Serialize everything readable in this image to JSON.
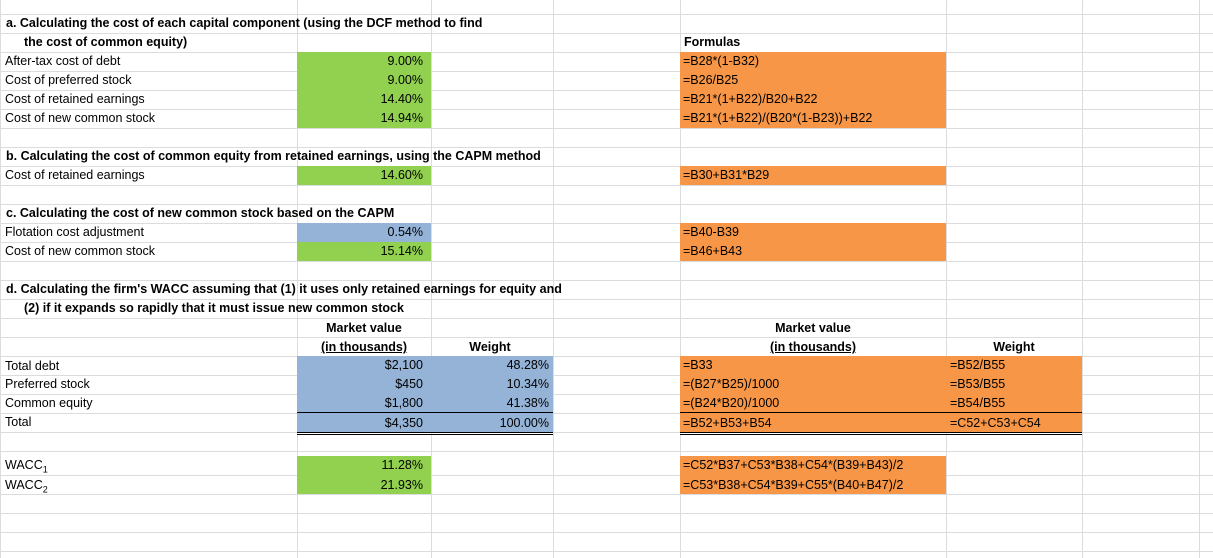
{
  "colors": {
    "green": "#92d050",
    "blue": "#95b3d7",
    "orange": "#f79646",
    "grid": "#dadcdf"
  },
  "sectionA": {
    "title1": "a. Calculating the cost of each capital component (using the DCF method to find",
    "title2": "the cost of common equity)",
    "formulas_header": "Formulas",
    "rows": [
      {
        "label": "After-tax cost of debt",
        "value": "9.00%",
        "formula": "=B28*(1-B32)"
      },
      {
        "label": "Cost of preferred stock",
        "value": "9.00%",
        "formula": "=B26/B25"
      },
      {
        "label": "Cost of retained earnings",
        "value": "14.40%",
        "formula": "=B21*(1+B22)/B20+B22"
      },
      {
        "label": "Cost of new common stock",
        "value": "14.94%",
        "formula": "=B21*(1+B22)/(B20*(1-B23))+B22"
      }
    ]
  },
  "sectionB": {
    "title": "b. Calculating the cost of common equity from retained earnings, using the CAPM method",
    "row": {
      "label": "Cost of retained earnings",
      "value": "14.60%",
      "formula": "=B30+B31*B29"
    }
  },
  "sectionC": {
    "title": "c. Calculating the cost of new common stock based on the CAPM",
    "rows": [
      {
        "label": "Flotation cost adjustment",
        "value": "0.54%",
        "formula": "=B40-B39"
      },
      {
        "label": "Cost of new common stock",
        "value": "15.14%",
        "formula": "=B46+B43"
      }
    ]
  },
  "sectionD": {
    "title1": "d. Calculating the firm's WACC assuming that (1) it uses only retained earnings for equity and",
    "title2": "(2) if it expands so rapidly that it must issue new common stock",
    "header_market_value": "Market value",
    "header_in_thousands": "(in thousands)",
    "header_weight": "Weight",
    "rows": [
      {
        "label": "Total debt",
        "market": "$2,100",
        "weight": "48.28%",
        "f_market": "=B33",
        "f_weight": "=B52/B55"
      },
      {
        "label": "Preferred stock",
        "market": "$450",
        "weight": "10.34%",
        "f_market": "=(B27*B25)/1000",
        "f_weight": "=B53/B55"
      },
      {
        "label": "Common equity",
        "market": "$1,800",
        "weight": "41.38%",
        "f_market": "=(B24*B20)/1000",
        "f_weight": "=B54/B55"
      },
      {
        "label": "Total",
        "market": "$4,350",
        "weight": "100.00%",
        "f_market": "=B52+B53+B54",
        "f_weight": "=C52+C53+C54"
      }
    ],
    "wacc": [
      {
        "label": "WACC",
        "sub": "1",
        "value": "11.28%",
        "formula": "=C52*B37+C53*B38+C54*(B39+B43)/2"
      },
      {
        "label": "WACC",
        "sub": "2",
        "value": "21.93%",
        "formula": "=C53*B38+C54*B39+C55*(B40+B47)/2"
      }
    ]
  }
}
